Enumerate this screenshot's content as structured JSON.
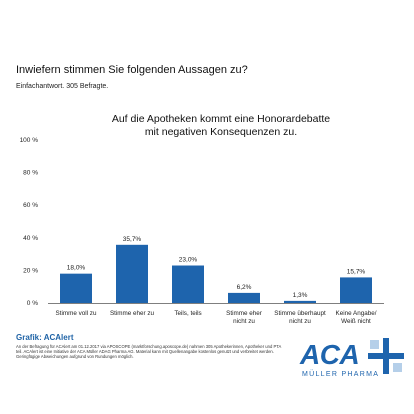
{
  "question": "Inwiefern stimmen Sie folgenden Aussagen zu?",
  "subnote": "Einfachantwort. 305 Befragte.",
  "chart_data": {
    "type": "bar",
    "title": "Auf die Apotheken kommt eine Honorardebatte mit negativen Konsequenzen zu.",
    "title_lines": [
      "Auf die Apotheken kommt eine Honorardebatte",
      "mit negativen Konsequenzen zu."
    ],
    "categories": [
      [
        "Stimme voll zu"
      ],
      [
        "Stimme eher zu"
      ],
      [
        "Teils, teils"
      ],
      [
        "Stimme eher",
        "nicht zu"
      ],
      [
        "Stimme überhaupt",
        "nicht zu"
      ],
      [
        "Keine Angabe/",
        "Weiß nicht"
      ]
    ],
    "values": [
      18.0,
      35.7,
      23.0,
      6.2,
      1.3,
      15.7
    ],
    "value_labels": [
      "18,0%",
      "35,7%",
      "23,0%",
      "6,2%",
      "1,3%",
      "15,7%"
    ],
    "ylim": [
      0,
      100
    ],
    "yticks": [
      0,
      20,
      40,
      60,
      80,
      100
    ],
    "ytick_labels": [
      "0 %",
      "20 %",
      "40 %",
      "60 %",
      "80 %",
      "100 %"
    ],
    "bar_color": "#1e64ad",
    "grid": false,
    "legend": "none"
  },
  "footer": {
    "source_label": "Grafik: ACAlert",
    "text": "An der Befragung für ACAlert am 01.12.2017 via APOSCOPE (marktforschung.aposcope.de) nahmen 305 Apothekerinnen, Apotheker und PTA teil. ACAlert ist eine Initiative der ACA Müller ADAG Pharma AG. Material kann mit Quellenangabe kostenlos genutzt und verbreitet werden. Geringfügige Abweichungen aufgrund von Rundungen möglich."
  },
  "logo": {
    "name": "ACA",
    "subtitle": "MÜLLER PHARMA",
    "primary_color": "#1e64ad",
    "accent_color": "#b5cfe9",
    "icon": "cross-logo-icon"
  }
}
